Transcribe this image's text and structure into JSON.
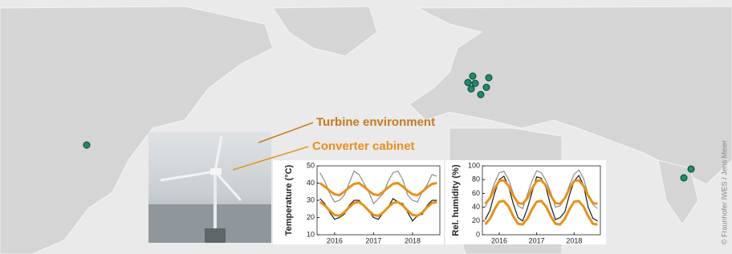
{
  "annotations": {
    "turbine": "Turbine environment",
    "cabinet": "Converter cabinet"
  },
  "credit": "© Fraunhofer IWES / Jens Meier",
  "chart_data": [
    {
      "type": "line",
      "y_label": "Temperature (°C)",
      "x": [
        2015.625,
        2015.75,
        2015.875,
        2016.0,
        2016.125,
        2016.25,
        2016.375,
        2016.5,
        2016.625,
        2016.75,
        2016.875,
        2017.0,
        2017.125,
        2017.25,
        2017.375,
        2017.5,
        2017.625,
        2017.75,
        2017.875,
        2018.0,
        2018.125,
        2018.25,
        2018.375,
        2018.5,
        2018.625
      ],
      "series": [
        {
          "color": "#8c8c8c",
          "values": [
            46,
            41,
            34,
            29,
            30,
            33,
            40,
            47,
            45,
            40,
            35,
            28,
            31,
            34,
            41,
            46,
            47,
            42,
            33,
            30,
            29,
            35,
            39,
            45,
            44
          ]
        },
        {
          "color": "#1a1a1a",
          "values": [
            31,
            28,
            23,
            19,
            20,
            22,
            27,
            30,
            30,
            27,
            24,
            20,
            19,
            23,
            26,
            31,
            29,
            28,
            23,
            18,
            21,
            22,
            27,
            30,
            30
          ]
        },
        {
          "color": "#e8901c",
          "values": [
            40,
            38,
            35.5,
            33.5,
            33,
            35,
            37.5,
            39.5,
            40,
            38,
            35.5,
            33.5,
            33,
            35,
            37.5,
            39.5,
            40,
            38,
            35.5,
            33.5,
            33,
            35,
            37.5,
            39.5,
            40
          ]
        },
        {
          "color": "#e8901c",
          "values": [
            29,
            27,
            24,
            21.5,
            21,
            23,
            26,
            28.5,
            29,
            27,
            24,
            21.5,
            21,
            23,
            26,
            28.5,
            29,
            27,
            24,
            21.5,
            21,
            23,
            26,
            28.5,
            29
          ]
        }
      ],
      "xlim": [
        2015.55,
        2018.7
      ],
      "xticks": [
        2016,
        2017,
        2018
      ],
      "ylim": [
        10,
        50
      ],
      "yticks": [
        10,
        20,
        30,
        40,
        50
      ]
    },
    {
      "type": "line",
      "y_label": "Rel. humidity (%)",
      "x": [
        2015.625,
        2015.75,
        2015.875,
        2016.0,
        2016.125,
        2016.25,
        2016.375,
        2016.5,
        2016.625,
        2016.75,
        2016.875,
        2017.0,
        2017.125,
        2017.25,
        2017.375,
        2017.5,
        2017.625,
        2017.75,
        2017.875,
        2018.0,
        2018.125,
        2018.25,
        2018.375,
        2018.5,
        2018.625
      ],
      "series": [
        {
          "color": "#8c8c8c",
          "values": [
            40,
            55,
            75,
            90,
            92,
            80,
            60,
            42,
            38,
            58,
            78,
            93,
            90,
            78,
            62,
            40,
            42,
            52,
            72,
            88,
            94,
            82,
            58,
            44,
            38
          ]
        },
        {
          "color": "#1a1a1a",
          "values": [
            22,
            35,
            60,
            80,
            85,
            70,
            45,
            25,
            20,
            38,
            62,
            84,
            82,
            68,
            42,
            22,
            25,
            33,
            58,
            78,
            86,
            72,
            40,
            24,
            20
          ]
        },
        {
          "color": "#e8901c",
          "values": [
            45,
            53,
            67,
            78,
            79,
            71,
            57,
            46,
            45,
            53,
            67,
            78,
            79,
            71,
            57,
            46,
            45,
            53,
            67,
            78,
            79,
            71,
            57,
            46,
            45
          ]
        },
        {
          "color": "#e8901c",
          "values": [
            15,
            23,
            37,
            48,
            49,
            41,
            27,
            16,
            15,
            23,
            37,
            48,
            49,
            41,
            27,
            16,
            15,
            23,
            37,
            48,
            49,
            41,
            27,
            16,
            15
          ]
        }
      ],
      "xlim": [
        2015.55,
        2018.7
      ],
      "xticks": [
        2016,
        2017,
        2018
      ],
      "ylim": [
        0,
        100
      ],
      "yticks": [
        0,
        20,
        40,
        60,
        80,
        100
      ]
    }
  ]
}
